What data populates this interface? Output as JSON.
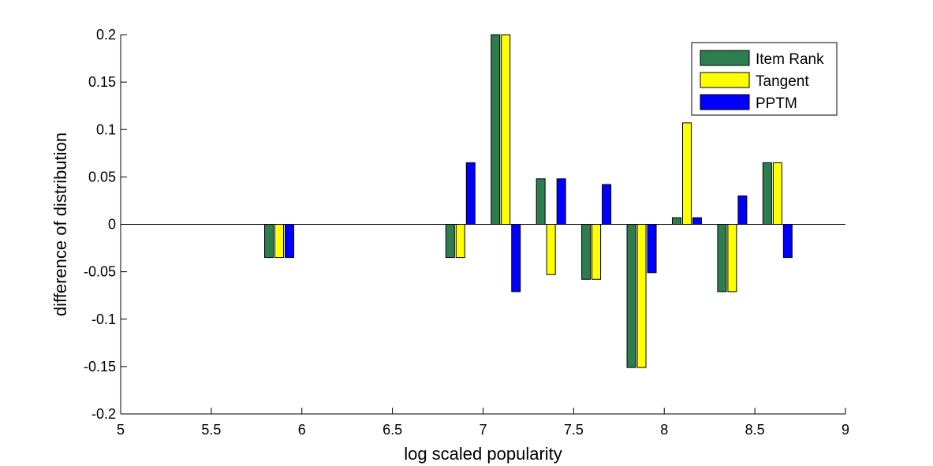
{
  "chart_data": {
    "type": "bar",
    "xlabel": "log scaled popularity",
    "ylabel": "difference of distribution",
    "xlim": [
      5,
      9
    ],
    "ylim": [
      -0.2,
      0.2
    ],
    "xticks": [
      "5",
      "5.5",
      "6",
      "6.5",
      "7",
      "7.5",
      "8",
      "8.5",
      "9"
    ],
    "yticks": [
      "-0.2",
      "-0.15",
      "-0.1",
      "-0.05",
      "0",
      "0.05",
      "0.1",
      "0.15",
      "0.2"
    ],
    "grid": false,
    "legend_position": "top-right",
    "x": [
      5.875,
      6.875,
      7.125,
      7.375,
      7.625,
      7.875,
      8.125,
      8.375,
      8.625
    ],
    "series": [
      {
        "name": "Item Rank",
        "color": "#2e7d4f",
        "values": [
          -0.035,
          -0.035,
          0.2,
          0.048,
          -0.058,
          -0.151,
          0.007,
          -0.071,
          0.065
        ]
      },
      {
        "name": "Tangent",
        "color": "#ffff00",
        "values": [
          -0.035,
          -0.035,
          0.2,
          -0.053,
          -0.058,
          -0.151,
          0.107,
          -0.071,
          0.065
        ]
      },
      {
        "name": "PPTM",
        "color": "#0000ff",
        "values": [
          -0.035,
          0.065,
          -0.071,
          0.048,
          0.042,
          -0.051,
          0.007,
          0.03,
          -0.035
        ]
      }
    ]
  }
}
